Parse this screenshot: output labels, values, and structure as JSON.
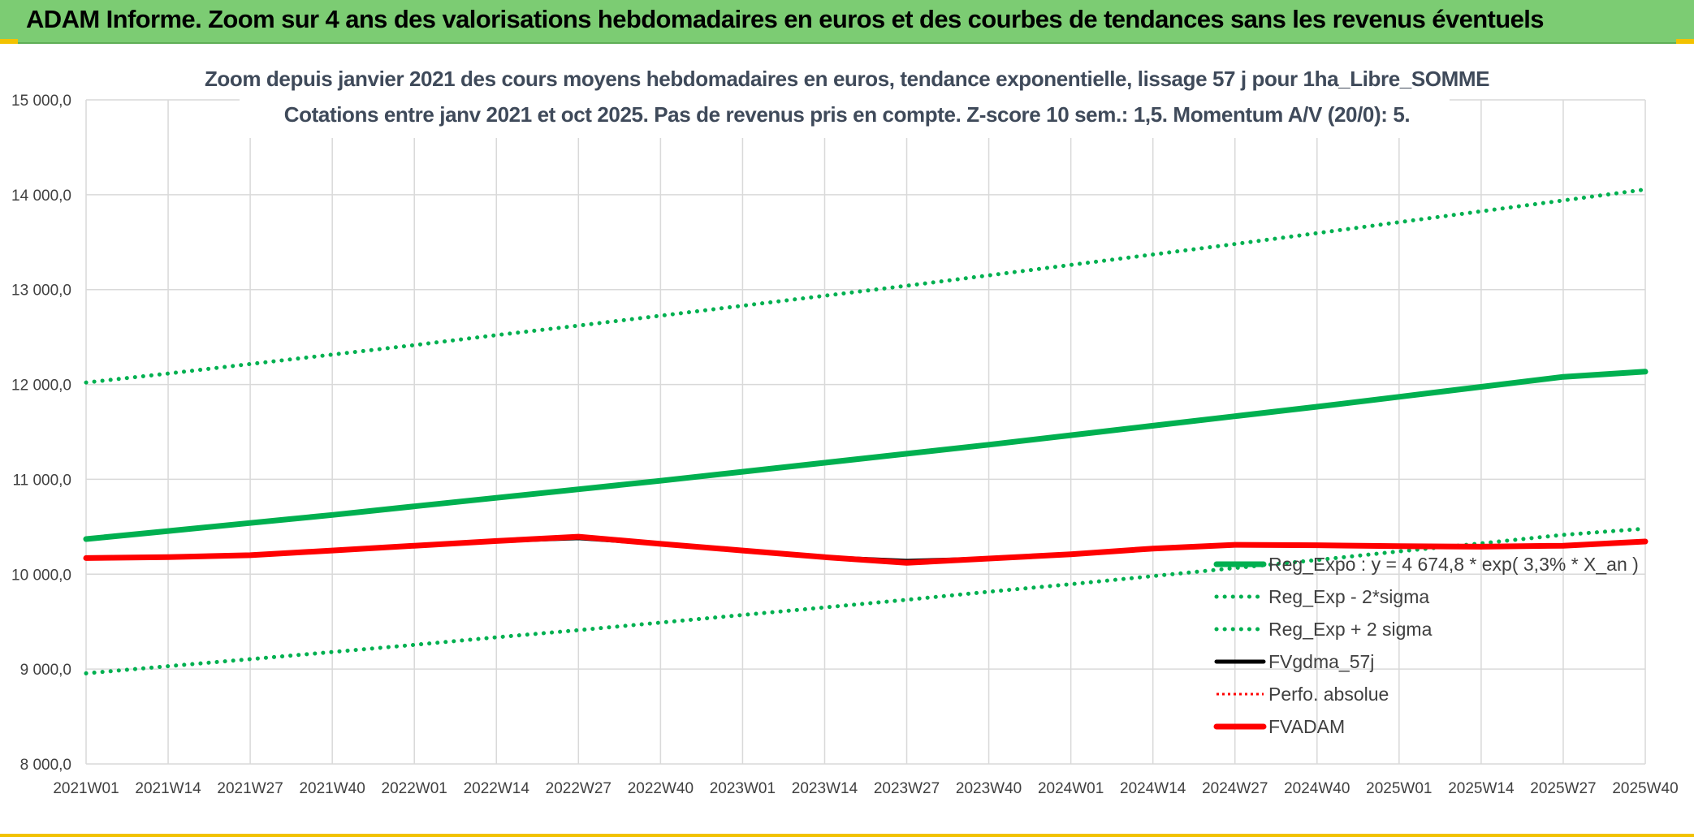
{
  "banner": {
    "title": "ADAM Informe. Zoom sur 4 ans des valorisations hebdomadaires en euros et des courbes de tendances sans les revenus éventuels"
  },
  "chart_data": {
    "type": "line",
    "title": "Zoom depuis janvier 2021 des cours moyens hebdomadaires en euros, tendance exponentielle, lissage 57 j pour 1ha_Libre_SOMME",
    "subtitle": "Cotations entre janv 2021 et oct 2025. Pas de revenus pris en compte. Z-score 10 sem.: 1,5. Momentum A/V (20/0): 5.",
    "xlabel": "",
    "ylabel": "",
    "ylim": [
      8000,
      15000
    ],
    "y_ticks": [
      "8 000,0",
      "9 000,0",
      "10 000,0",
      "11 000,0",
      "12 000,0",
      "13 000,0",
      "14 000,0",
      "15 000,0"
    ],
    "y_tick_values": [
      8000,
      9000,
      10000,
      11000,
      12000,
      13000,
      14000,
      15000
    ],
    "categories": [
      "2021W01",
      "2021W14",
      "2021W27",
      "2021W40",
      "2022W01",
      "2022W14",
      "2022W27",
      "2022W40",
      "2023W01",
      "2023W14",
      "2023W27",
      "2023W40",
      "2024W01",
      "2024W14",
      "2024W27",
      "2024W40",
      "2025W01",
      "2025W14",
      "2025W27",
      "2025W40"
    ],
    "grid": true,
    "legend_position": "bottom-right",
    "series": [
      {
        "name": "Reg_Expo : y = 4 674,8 * exp( 3,3% *  X_an )",
        "style": "solid-thick",
        "color": "#00b050",
        "values": [
          10370,
          10455,
          10540,
          10625,
          10715,
          10805,
          10895,
          10985,
          11080,
          11175,
          11270,
          11365,
          11465,
          11565,
          11665,
          11765,
          11870,
          11975,
          12080,
          12135
        ]
      },
      {
        "name": "Reg_Exp - 2*sigma",
        "style": "dotted",
        "color": "#00b050",
        "values": [
          8955,
          9030,
          9105,
          9180,
          9255,
          9335,
          9410,
          9490,
          9570,
          9650,
          9730,
          9815,
          9895,
          9980,
          10065,
          10150,
          10240,
          10325,
          10415,
          10480
        ]
      },
      {
        "name": "Reg_Exp + 2 sigma",
        "style": "dotted",
        "color": "#00b050",
        "values": [
          12020,
          12115,
          12215,
          12315,
          12415,
          12520,
          12620,
          12725,
          12830,
          12935,
          13040,
          13150,
          13260,
          13370,
          13480,
          13595,
          13710,
          13825,
          13940,
          14055
        ]
      },
      {
        "name": "FVgdma_57j",
        "style": "solid-thin",
        "color": "#000000",
        "values": [
          10170,
          10180,
          10200,
          10250,
          10300,
          10350,
          10380,
          10320,
          10250,
          10180,
          10140,
          10165,
          10210,
          10270,
          10310,
          10305,
          10295,
          10290,
          10300,
          10340
        ]
      },
      {
        "name": "Perfo. absolue",
        "style": "dotted-thin",
        "color": "#ff0000",
        "values": [
          10170,
          10180,
          10200,
          10250,
          10300,
          10350,
          10395,
          10320,
          10250,
          10180,
          10120,
          10165,
          10210,
          10270,
          10310,
          10305,
          10295,
          10290,
          10300,
          10345
        ]
      },
      {
        "name": "FVADAM",
        "style": "solid-thick",
        "color": "#ff0000",
        "values": [
          10170,
          10180,
          10200,
          10250,
          10300,
          10350,
          10395,
          10320,
          10250,
          10180,
          10120,
          10165,
          10210,
          10270,
          10310,
          10305,
          10295,
          10290,
          10300,
          10345
        ]
      }
    ]
  }
}
